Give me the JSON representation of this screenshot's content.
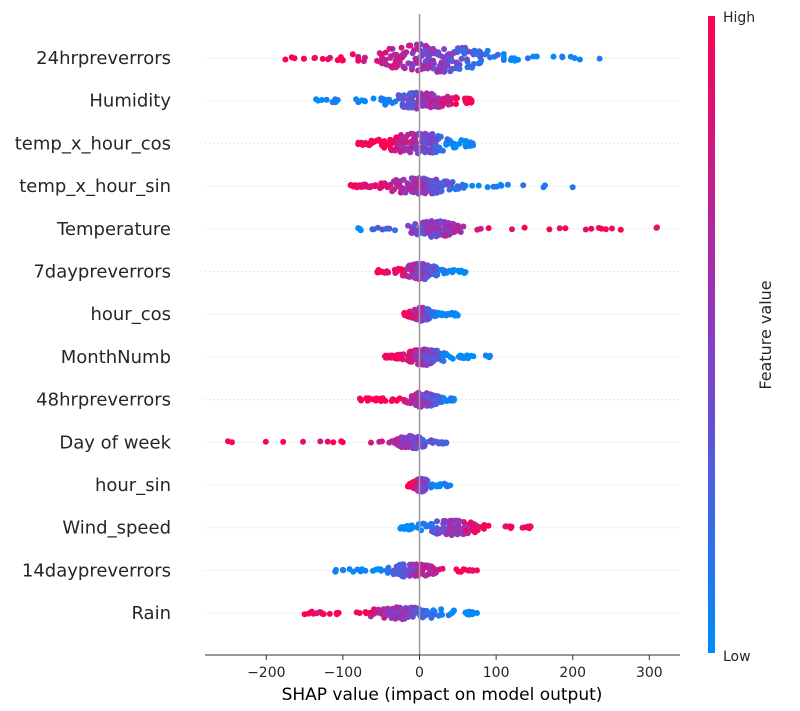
{
  "chart_data": {
    "type": "scatter",
    "subtype": "shap-beeswarm",
    "title": "",
    "xlabel": "SHAP value (impact on model output)",
    "xlim": [
      -280,
      340
    ],
    "xticks": [
      -200,
      -100,
      0,
      100,
      200,
      300
    ],
    "xtick_labels": [
      "−200",
      "−100",
      "0",
      "100",
      "200",
      "300"
    ],
    "colorbar": {
      "label": "Feature value",
      "high_label": "High",
      "low_label": "Low",
      "high_color": "#ff0052",
      "low_color": "#008bfb"
    },
    "features": [
      {
        "name": "24hrpreverrors",
        "min": -175,
        "max": 235,
        "core": [
          -80,
          110
        ],
        "spread": 1.0,
        "high_side": "left"
      },
      {
        "name": "Humidity",
        "min": -135,
        "max": 68,
        "core": [
          -60,
          60
        ],
        "spread": 0.55,
        "high_side": "right"
      },
      {
        "name": "temp_x_hour_cos",
        "min": -80,
        "max": 70,
        "core": [
          -60,
          60
        ],
        "spread": 0.7,
        "high_side": "left"
      },
      {
        "name": "temp_x_hour_sin",
        "min": -90,
        "max": 200,
        "core": [
          -60,
          60
        ],
        "spread": 0.55,
        "high_side": "left"
      },
      {
        "name": "Temperature",
        "min": -80,
        "max": 310,
        "core": [
          -20,
          60
        ],
        "spread": 0.55,
        "high_side": "right"
      },
      {
        "name": "7daypreverrors",
        "min": -55,
        "max": 60,
        "core": [
          -30,
          30
        ],
        "spread": 0.55,
        "high_side": "left"
      },
      {
        "name": "hour_cos",
        "min": -20,
        "max": 50,
        "core": [
          -15,
          20
        ],
        "spread": 0.45,
        "high_side": "left"
      },
      {
        "name": "MonthNumb",
        "min": -45,
        "max": 92,
        "core": [
          -25,
          40
        ],
        "spread": 0.55,
        "high_side": "left"
      },
      {
        "name": "48hrpreverrors",
        "min": -78,
        "max": 45,
        "core": [
          -20,
          30
        ],
        "spread": 0.5,
        "high_side": "left"
      },
      {
        "name": "Day of week",
        "min": -250,
        "max": 35,
        "core": [
          -40,
          15
        ],
        "spread": 0.45,
        "high_side": "left"
      },
      {
        "name": "hour_sin",
        "min": -15,
        "max": 40,
        "core": [
          -10,
          15
        ],
        "spread": 0.45,
        "high_side": "left"
      },
      {
        "name": "Wind_speed",
        "min": -25,
        "max": 145,
        "core": [
          -10,
          90
        ],
        "spread": 0.5,
        "high_side": "right"
      },
      {
        "name": "14daypreverrors",
        "min": -110,
        "max": 75,
        "core": [
          -50,
          30
        ],
        "spread": 0.45,
        "high_side": "right"
      },
      {
        "name": "Rain",
        "min": -150,
        "max": 75,
        "core": [
          -100,
          60
        ],
        "spread": 0.4,
        "high_side": "left"
      }
    ]
  }
}
